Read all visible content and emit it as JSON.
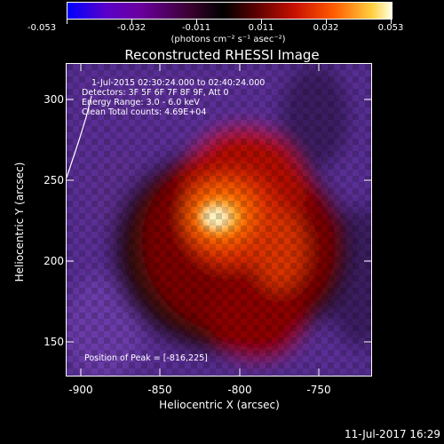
{
  "colorbar": {
    "ticks": [
      "-0.053",
      "-0.032",
      "-0.011",
      "0.011",
      "0.032",
      "0.053"
    ],
    "units": "(photons cm⁻² s⁻¹ asec⁻²)",
    "range": [
      -0.053,
      0.053
    ]
  },
  "title": "Reconstructed RHESSI Image",
  "info": {
    "line1": "1-Jul-2015 02:30:24.000 to 02:40:24.000",
    "line2": "Detectors: 3F 5F 6F 7F 8F 9F, Att 0",
    "line3": "Energy Range: 3.0 - 6.0 keV",
    "line4": "Clean     Total counts: 4.69E+04",
    "peak": "Position of Peak = [-816,225]"
  },
  "axes": {
    "xlabel": "Heliocentric X (arcsec)",
    "ylabel": "Heliocentric Y (arcsec)",
    "xticks": [
      "-900",
      "-850",
      "-800",
      "-750"
    ],
    "yticks": [
      "300",
      "250",
      "200",
      "150"
    ],
    "xlim": [
      -912,
      -712
    ],
    "ylim": [
      128,
      328
    ]
  },
  "footer": "11-Jul-2017 16:29"
}
